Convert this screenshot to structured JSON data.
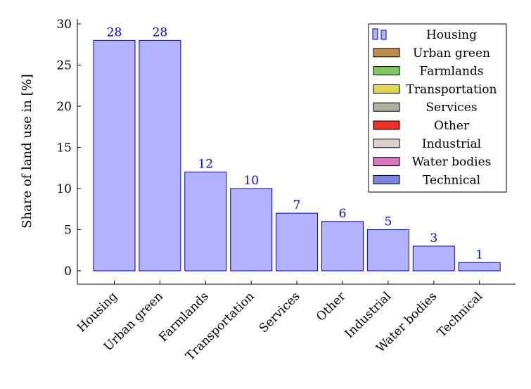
{
  "chart_data": {
    "type": "bar",
    "categories": [
      "Housing",
      "Urban green",
      "Farmlands",
      "Transportation",
      "Services",
      "Other",
      "Industrial",
      "Water bodies",
      "Technical"
    ],
    "values": [
      28,
      28,
      12,
      10,
      7,
      6,
      5,
      3,
      1
    ],
    "ylabel": "Share of land use in [%]",
    "ylim": [
      -1.7,
      30.5
    ],
    "yticks": [
      0,
      5,
      10,
      15,
      20,
      25,
      30
    ],
    "bar_color": "#b3b3ff",
    "bar_edge": "#0000cc",
    "label_color": "#0000ff",
    "grid": false,
    "legend": {
      "position": "top-right",
      "entries": [
        {
          "label": "Housing",
          "color": "#b3b3ff",
          "edge": "#0000cc",
          "style": "double-bar"
        },
        {
          "label": "Urban green",
          "color": "#bf8c50",
          "edge": "#000000"
        },
        {
          "label": "Farmlands",
          "color": "#80c860",
          "edge": "#000000"
        },
        {
          "label": "Transportation",
          "color": "#e0d84a",
          "edge": "#000000"
        },
        {
          "label": "Services",
          "color": "#b0b0a0",
          "edge": "#000000"
        },
        {
          "label": "Other",
          "color": "#f03028",
          "edge": "#000000"
        },
        {
          "label": "Industrial",
          "color": "#dcd0cc",
          "edge": "#000000"
        },
        {
          "label": "Water bodies",
          "color": "#d878c0",
          "edge": "#000000"
        },
        {
          "label": "Technical",
          "color": "#7c84e0",
          "edge": "#000000"
        }
      ]
    }
  }
}
